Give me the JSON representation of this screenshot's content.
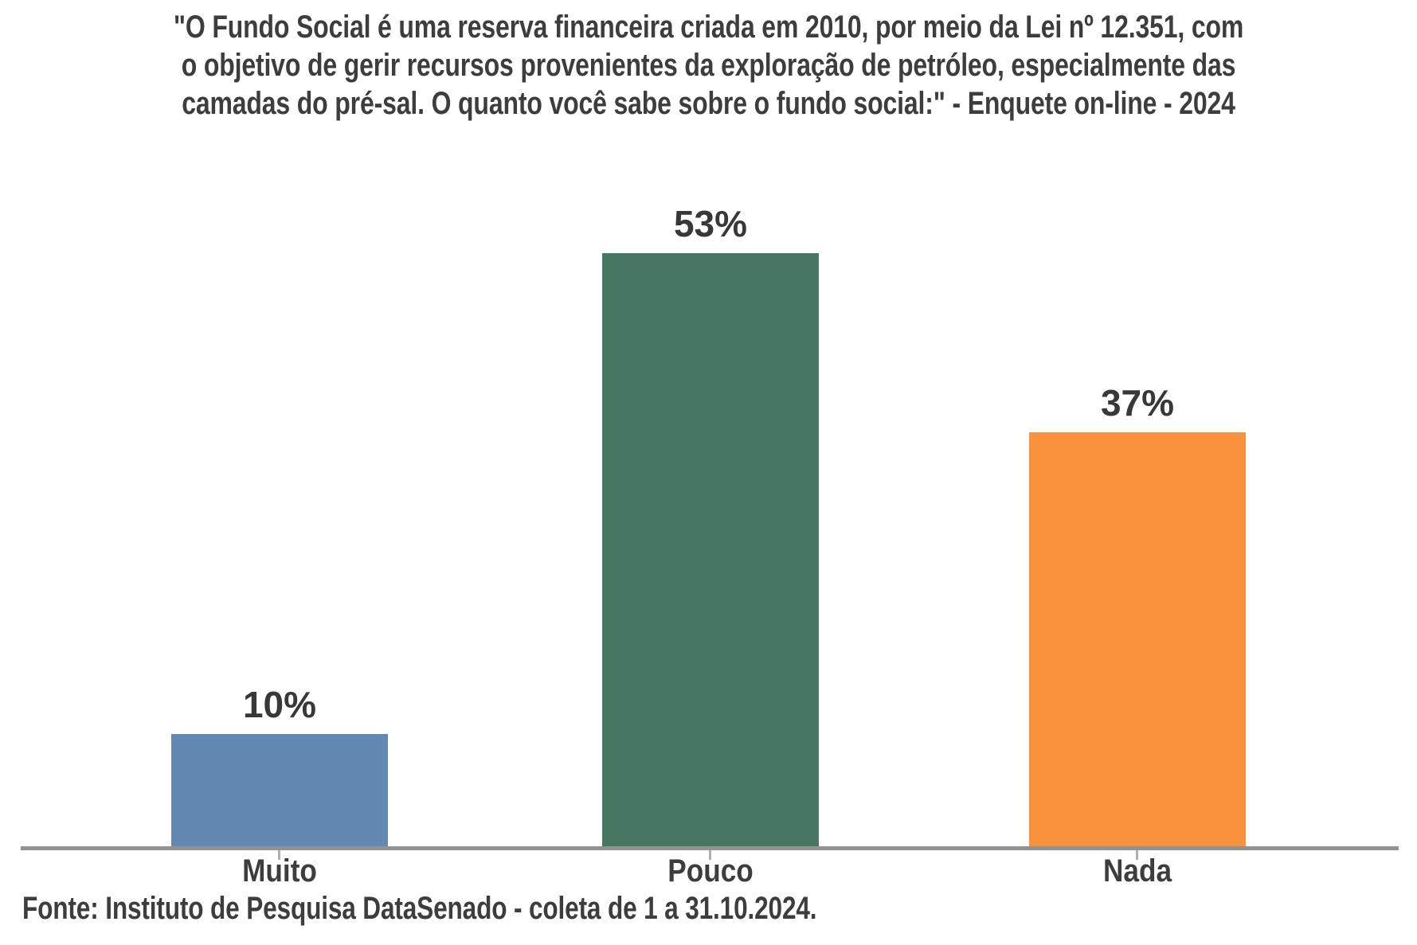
{
  "header": {
    "title_lines": [
      "\"O Fundo Social é uma reserva financeira criada em 2010, por meio da Lei nº 12.351, com",
      "o objetivo de gerir recursos provenientes da exploração de petróleo, especialmente das",
      "camadas do pré-sal. O quanto você sabe sobre o fundo social:\" - Enquete on-line - 2024"
    ]
  },
  "chart_data": {
    "type": "bar",
    "title": "\"O Fundo Social é uma reserva financeira criada em 2010, por meio da Lei nº 12.351, com o objetivo de gerir recursos provenientes da exploração de petróleo, especialmente das camadas do pré-sal. O quanto você sabe sobre o fundo social:\" - Enquete on-line - 2024",
    "subtitle": "Enquete on-line - 2024",
    "categories": [
      "Muito",
      "Pouco",
      "Nada"
    ],
    "values": [
      10,
      53,
      37
    ],
    "unit": "%",
    "points": [
      {
        "category": "Muito",
        "value": 10,
        "value_label": "10%",
        "color": "#6289b2"
      },
      {
        "category": "Pouco",
        "value": 53,
        "value_label": "53%",
        "color": "#477663"
      },
      {
        "category": "Nada",
        "value": 37,
        "value_label": "37%",
        "color": "#f9923d"
      }
    ],
    "xlabel": "",
    "ylabel": "",
    "ylim": [
      0,
      60
    ],
    "grid": false,
    "legend": "none",
    "value_labels_position": "above-bars",
    "axis_color": "#929292",
    "text_color": "#3d3d3d"
  },
  "footer": {
    "source": "Fonte: Instituto de Pesquisa DataSenado - coleta de 1 a 31.10.2024."
  }
}
